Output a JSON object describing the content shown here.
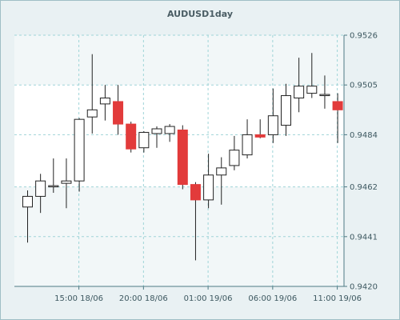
{
  "chart_data": {
    "type": "candlestick",
    "title": "AUDUSD1day",
    "xlabel": "",
    "ylabel": "",
    "ylim": [
      0.942,
      0.9526
    ],
    "y_ticks": [
      "0.9526",
      "0.9505",
      "0.9484",
      "0.9462",
      "0.9441",
      "0.9420"
    ],
    "y_tick_values": [
      0.9526,
      0.9505,
      0.9484,
      0.9462,
      0.9441,
      0.942
    ],
    "x_tick_labels": [
      "15:00 18/06",
      "20:00 18/06",
      "01:00 19/06",
      "06:00 19/06",
      "11:00 19/06"
    ],
    "x_tick_indices": [
      4,
      9,
      14,
      19,
      24
    ],
    "grid": true,
    "colors": {
      "up_fill": "#ffffff",
      "down_fill": "#e23b3b",
      "wick": "#222222",
      "grid": "#9fd4d8",
      "plot_band": "#ffffff",
      "frame_bg": "#e9f1f3",
      "axis": "#4e7a84"
    },
    "candles": [
      {
        "o": 0.94535,
        "h": 0.94605,
        "l": 0.94385,
        "c": 0.9458
      },
      {
        "o": 0.9458,
        "h": 0.94675,
        "l": 0.9451,
        "c": 0.94645
      },
      {
        "o": 0.94625,
        "h": 0.9474,
        "l": 0.94595,
        "c": 0.94625
      },
      {
        "o": 0.94635,
        "h": 0.9474,
        "l": 0.9453,
        "c": 0.94645
      },
      {
        "o": 0.94645,
        "h": 0.9491,
        "l": 0.946,
        "c": 0.94905
      },
      {
        "o": 0.94915,
        "h": 0.9518,
        "l": 0.94845,
        "c": 0.94945
      },
      {
        "o": 0.9497,
        "h": 0.9505,
        "l": 0.949,
        "c": 0.94995
      },
      {
        "o": 0.9498,
        "h": 0.9505,
        "l": 0.9484,
        "c": 0.94885
      },
      {
        "o": 0.94885,
        "h": 0.94895,
        "l": 0.94765,
        "c": 0.9478
      },
      {
        "o": 0.94785,
        "h": 0.94855,
        "l": 0.94765,
        "c": 0.9485
      },
      {
        "o": 0.94845,
        "h": 0.94875,
        "l": 0.94785,
        "c": 0.94865
      },
      {
        "o": 0.94845,
        "h": 0.94885,
        "l": 0.9481,
        "c": 0.94875
      },
      {
        "o": 0.9486,
        "h": 0.9488,
        "l": 0.9461,
        "c": 0.9463
      },
      {
        "o": 0.9463,
        "h": 0.9464,
        "l": 0.9431,
        "c": 0.94565
      },
      {
        "o": 0.94565,
        "h": 0.9476,
        "l": 0.9453,
        "c": 0.9467
      },
      {
        "o": 0.9467,
        "h": 0.94745,
        "l": 0.94545,
        "c": 0.947
      },
      {
        "o": 0.9471,
        "h": 0.94835,
        "l": 0.9469,
        "c": 0.94775
      },
      {
        "o": 0.94755,
        "h": 0.94905,
        "l": 0.9474,
        "c": 0.9484
      },
      {
        "o": 0.9484,
        "h": 0.94905,
        "l": 0.94825,
        "c": 0.9483
      },
      {
        "o": 0.9484,
        "h": 0.95035,
        "l": 0.94805,
        "c": 0.9492
      },
      {
        "o": 0.9488,
        "h": 0.95055,
        "l": 0.94835,
        "c": 0.95005
      },
      {
        "o": 0.94995,
        "h": 0.95165,
        "l": 0.94935,
        "c": 0.95045
      },
      {
        "o": 0.95015,
        "h": 0.95185,
        "l": 0.94995,
        "c": 0.95045
      },
      {
        "o": 0.9501,
        "h": 0.9509,
        "l": 0.9495,
        "c": 0.9501
      },
      {
        "o": 0.9498,
        "h": 0.95015,
        "l": 0.94805,
        "c": 0.94945
      }
    ]
  }
}
